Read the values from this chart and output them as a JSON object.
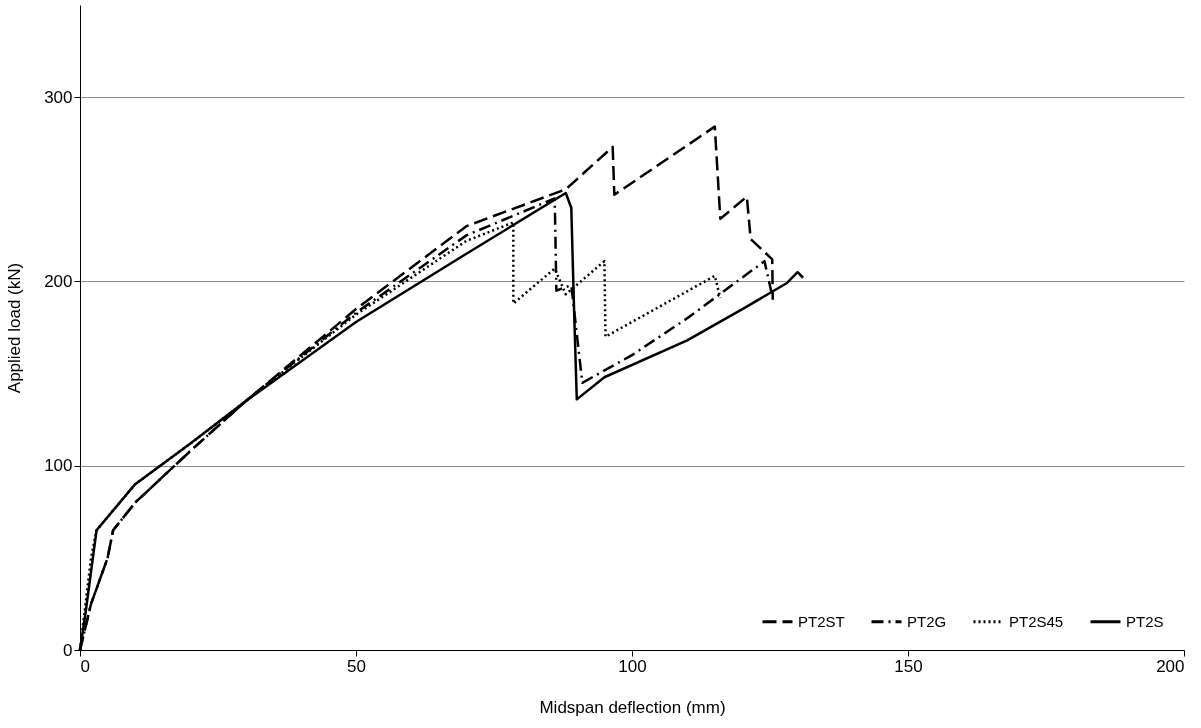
{
  "chart_data": {
    "type": "line",
    "xlabel": "Midspan deflection (mm)",
    "ylabel": "Applied load (kN)",
    "xlim": [
      0,
      200
    ],
    "xticks": [
      0,
      50,
      100,
      150,
      200
    ],
    "ylim": [
      0,
      350
    ],
    "yticks": [
      0,
      100,
      200,
      300
    ],
    "grid": "y",
    "legend": "bottom right",
    "marker": "none",
    "series": [
      {
        "name": "PT2ST",
        "color": "#000000",
        "line_style": "dashed",
        "x": [
          0,
          2,
          5,
          6,
          10,
          20,
          30,
          50,
          70,
          88,
          96.5,
          96.8,
          115,
          116,
          120.8,
          121.5,
          125.4,
          125.5
        ],
        "values": [
          0,
          25,
          50,
          65,
          80,
          108,
          135,
          185,
          230,
          250,
          273,
          247,
          284,
          234,
          246,
          223,
          212,
          190
        ]
      },
      {
        "name": "PT2G",
        "color": "#000000",
        "line_style": "dashdot",
        "x": [
          0,
          2,
          5,
          6,
          10,
          20,
          30,
          50,
          70,
          86,
          86.3,
          89,
          91,
          100,
          110,
          124,
          125.5
        ],
        "values": [
          0,
          25,
          50,
          65,
          80,
          108,
          135,
          183,
          225,
          245,
          195,
          198,
          145,
          160,
          180,
          211,
          191
        ]
      },
      {
        "name": "PT2S45",
        "color": "#000000",
        "line_style": "dotted",
        "x": [
          0,
          2,
          3,
          10,
          20,
          30,
          50,
          70,
          78.5,
          78.5,
          86,
          88,
          95,
          95.2,
          115,
          116
        ],
        "values": [
          0,
          50,
          65,
          90,
          112,
          135,
          182,
          222,
          232,
          188,
          207,
          193,
          211,
          170,
          203,
          191
        ]
      },
      {
        "name": "PT2S",
        "color": "#000000",
        "line_style": "solid",
        "x": [
          0,
          1,
          3,
          10,
          20,
          30,
          50,
          70,
          88,
          89,
          89.5,
          90,
          95,
          110,
          120,
          128,
          130,
          131
        ],
        "values": [
          0,
          20,
          65,
          90,
          112,
          135,
          178,
          215,
          248,
          240,
          185,
          136,
          148,
          168,
          185,
          199,
          205,
          202
        ]
      }
    ]
  }
}
